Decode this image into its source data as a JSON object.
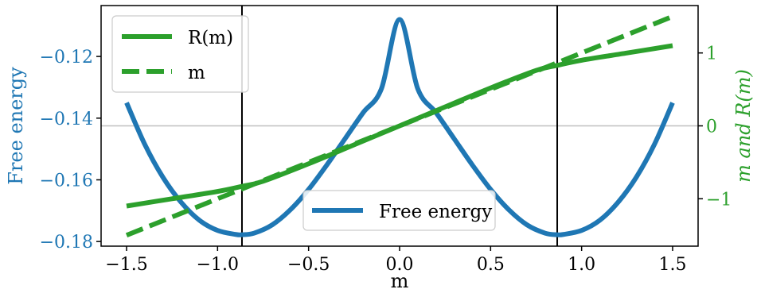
{
  "chart_data": {
    "type": "line",
    "xlabel": "m",
    "ylabel_left": "Free energy",
    "ylabel_right": "m and R(m)",
    "xlim": [
      -1.64,
      1.64
    ],
    "ylim_left": [
      -0.1815,
      -0.1035
    ],
    "ylim_right": [
      -1.65,
      1.65
    ],
    "x_ticks": [
      -1.5,
      -1.0,
      -0.5,
      0.0,
      0.5,
      1.0,
      1.5
    ],
    "x_tick_labels": [
      "−1.5",
      "−1.0",
      "−0.5",
      "0.0",
      "0.5",
      "1.0",
      "1.5"
    ],
    "y_left_ticks": [
      -0.18,
      -0.16,
      -0.14,
      -0.12
    ],
    "y_left_tick_labels": [
      "−0.18",
      "−0.16",
      "−0.14",
      "−0.12"
    ],
    "y_right_ticks": [
      -1,
      0,
      1
    ],
    "y_right_tick_labels": [
      "−1",
      "0",
      "1"
    ],
    "vertical_lines_x": [
      -0.866,
      0.866
    ],
    "horizontal_line_right_y": 0,
    "series": [
      {
        "name": "Free energy",
        "axis": "left",
        "color": "#1f77b4",
        "style": "solid",
        "x": [
          -1.5,
          -1.4,
          -1.3,
          -1.2,
          -1.1,
          -1.0,
          -0.9,
          -0.866,
          -0.8,
          -0.7,
          -0.6,
          -0.5,
          -0.4,
          -0.3,
          -0.2,
          -0.1,
          0.0,
          0.1,
          0.2,
          0.3,
          0.4,
          0.5,
          0.6,
          0.7,
          0.8,
          0.866,
          0.9,
          1.0,
          1.1,
          1.2,
          1.3,
          1.4,
          1.5
        ],
        "values": [
          -0.135,
          -0.1485,
          -0.1592,
          -0.1673,
          -0.1731,
          -0.1764,
          -0.1777,
          -0.1778,
          -0.1773,
          -0.1746,
          -0.1697,
          -0.1631,
          -0.1552,
          -0.1467,
          -0.1382,
          -0.1305,
          -0.108,
          -0.1305,
          -0.1382,
          -0.1467,
          -0.1552,
          -0.1631,
          -0.1697,
          -0.1746,
          -0.1773,
          -0.1778,
          -0.1777,
          -0.1764,
          -0.1731,
          -0.1673,
          -0.1592,
          -0.1485,
          -0.135
        ]
      },
      {
        "name": "R(m)",
        "axis": "right",
        "color": "#2ca02c",
        "style": "solid",
        "x": [
          -1.5,
          -1.25,
          -1.0,
          -0.866,
          -0.75,
          -0.5,
          -0.25,
          0.0,
          0.25,
          0.5,
          0.75,
          0.866,
          1.0,
          1.25,
          1.5
        ],
        "values": [
          -1.1,
          -1.0,
          -0.9,
          -0.83,
          -0.76,
          -0.52,
          -0.26,
          0.0,
          0.26,
          0.52,
          0.76,
          0.83,
          0.9,
          1.0,
          1.1
        ]
      },
      {
        "name": "m",
        "axis": "right",
        "color": "#2ca02c",
        "style": "dashed",
        "x": [
          -1.5,
          1.5
        ],
        "values": [
          -1.5,
          1.5
        ]
      }
    ],
    "legend_upper": [
      "R(m)",
      "m"
    ],
    "legend_upper_placement": "upper-left",
    "legend_lower": [
      "Free energy"
    ],
    "legend_lower_placement": "lower-center"
  }
}
